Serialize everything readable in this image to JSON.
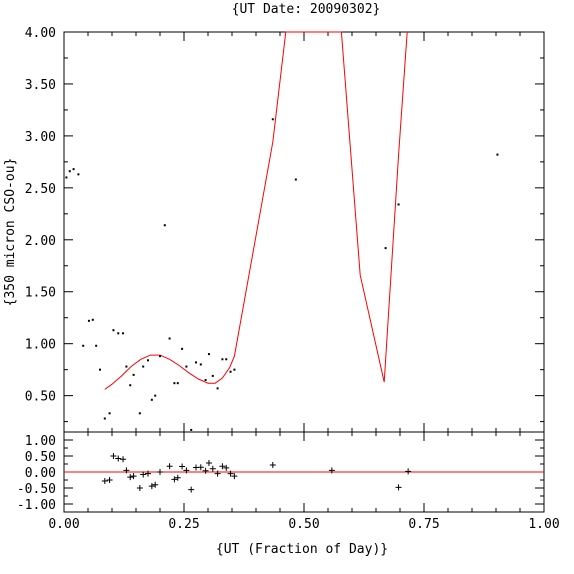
{
  "chart_data": {
    "type": "scatter",
    "title": "{UT Date: 20090302}",
    "xlabel": "{UT (Fraction of Day)}",
    "ylabel": "{350 micron CSO-ou}",
    "xlim": [
      0.0,
      1.0
    ],
    "ylim": [
      0.15,
      4.0
    ],
    "residual_ylim": [
      -1.25,
      1.25
    ],
    "x_ticks": [
      "0.00",
      "0.25",
      "0.50",
      "0.75",
      "1.00"
    ],
    "y_ticks": [
      "0.50",
      "1.00",
      "1.50",
      "2.00",
      "2.50",
      "3.00",
      "3.50",
      "4.00"
    ],
    "residual_y_ticks": [
      "1.00",
      "0.50",
      "0.00",
      "-0.50",
      "-1.00"
    ],
    "colors": {
      "fit": "#ff0000",
      "points": "#000000",
      "axes": "#000000"
    },
    "points": [
      {
        "x": 0.005,
        "y": 2.6
      },
      {
        "x": 0.012,
        "y": 2.66
      },
      {
        "x": 0.02,
        "y": 2.68
      },
      {
        "x": 0.03,
        "y": 2.63
      },
      {
        "x": 0.04,
        "y": 0.98
      },
      {
        "x": 0.052,
        "y": 1.22
      },
      {
        "x": 0.06,
        "y": 1.23
      },
      {
        "x": 0.067,
        "y": 0.98
      },
      {
        "x": 0.075,
        "y": 0.75
      },
      {
        "x": 0.085,
        "y": 0.28
      },
      {
        "x": 0.095,
        "y": 0.33
      },
      {
        "x": 0.103,
        "y": 1.13
      },
      {
        "x": 0.113,
        "y": 1.1
      },
      {
        "x": 0.123,
        "y": 1.1
      },
      {
        "x": 0.13,
        "y": 0.78
      },
      {
        "x": 0.138,
        "y": 0.6
      },
      {
        "x": 0.145,
        "y": 0.7
      },
      {
        "x": 0.158,
        "y": 0.33
      },
      {
        "x": 0.165,
        "y": 0.78
      },
      {
        "x": 0.175,
        "y": 0.84
      },
      {
        "x": 0.183,
        "y": 0.46
      },
      {
        "x": 0.19,
        "y": 0.5
      },
      {
        "x": 0.2,
        "y": 0.88
      },
      {
        "x": 0.21,
        "y": 2.14
      },
      {
        "x": 0.22,
        "y": 1.05
      },
      {
        "x": 0.23,
        "y": 0.62
      },
      {
        "x": 0.237,
        "y": 0.62
      },
      {
        "x": 0.246,
        "y": 0.95
      },
      {
        "x": 0.255,
        "y": 0.78
      },
      {
        "x": 0.265,
        "y": 0.17
      },
      {
        "x": 0.275,
        "y": 0.82
      },
      {
        "x": 0.285,
        "y": 0.8
      },
      {
        "x": 0.295,
        "y": 0.65
      },
      {
        "x": 0.302,
        "y": 0.9
      },
      {
        "x": 0.31,
        "y": 0.69
      },
      {
        "x": 0.32,
        "y": 0.57
      },
      {
        "x": 0.33,
        "y": 0.85
      },
      {
        "x": 0.338,
        "y": 0.85
      },
      {
        "x": 0.347,
        "y": 0.73
      },
      {
        "x": 0.355,
        "y": 0.75
      },
      {
        "x": 0.435,
        "y": 3.16
      },
      {
        "x": 0.483,
        "y": 2.58
      },
      {
        "x": 0.67,
        "y": 1.92
      },
      {
        "x": 0.697,
        "y": 2.34
      },
      {
        "x": 0.903,
        "y": 2.82
      }
    ],
    "fit_curve": [
      {
        "x": 0.085,
        "y": 0.56
      },
      {
        "x": 0.1,
        "y": 0.61
      },
      {
        "x": 0.12,
        "y": 0.69
      },
      {
        "x": 0.14,
        "y": 0.78
      },
      {
        "x": 0.16,
        "y": 0.85
      },
      {
        "x": 0.18,
        "y": 0.89
      },
      {
        "x": 0.2,
        "y": 0.89
      },
      {
        "x": 0.22,
        "y": 0.85
      },
      {
        "x": 0.24,
        "y": 0.79
      },
      {
        "x": 0.26,
        "y": 0.72
      },
      {
        "x": 0.28,
        "y": 0.66
      },
      {
        "x": 0.3,
        "y": 0.62
      },
      {
        "x": 0.315,
        "y": 0.62
      },
      {
        "x": 0.33,
        "y": 0.67
      },
      {
        "x": 0.345,
        "y": 0.77
      },
      {
        "x": 0.355,
        "y": 0.88
      },
      {
        "x": 0.435,
        "y": 2.94
      },
      {
        "x": 0.462,
        "y": 4.0
      },
      {
        "x": 0.578,
        "y": 4.0
      },
      {
        "x": 0.617,
        "y": 1.66
      },
      {
        "x": 0.667,
        "y": 0.63
      },
      {
        "x": 0.697,
        "y": 2.82
      },
      {
        "x": 0.715,
        "y": 4.0
      }
    ],
    "residuals": [
      {
        "x": 0.085,
        "y": -0.28
      },
      {
        "x": 0.095,
        "y": -0.25
      },
      {
        "x": 0.103,
        "y": 0.5
      },
      {
        "x": 0.113,
        "y": 0.42
      },
      {
        "x": 0.123,
        "y": 0.4
      },
      {
        "x": 0.13,
        "y": 0.05
      },
      {
        "x": 0.138,
        "y": -0.16
      },
      {
        "x": 0.145,
        "y": -0.13
      },
      {
        "x": 0.158,
        "y": -0.5
      },
      {
        "x": 0.165,
        "y": -0.08
      },
      {
        "x": 0.175,
        "y": -0.05
      },
      {
        "x": 0.183,
        "y": -0.44
      },
      {
        "x": 0.19,
        "y": -0.4
      },
      {
        "x": 0.2,
        "y": 0.0
      },
      {
        "x": 0.22,
        "y": 0.18
      },
      {
        "x": 0.23,
        "y": -0.23
      },
      {
        "x": 0.237,
        "y": -0.18
      },
      {
        "x": 0.246,
        "y": 0.17
      },
      {
        "x": 0.255,
        "y": 0.05
      },
      {
        "x": 0.265,
        "y": -0.55
      },
      {
        "x": 0.275,
        "y": 0.14
      },
      {
        "x": 0.285,
        "y": 0.15
      },
      {
        "x": 0.295,
        "y": 0.04
      },
      {
        "x": 0.302,
        "y": 0.28
      },
      {
        "x": 0.31,
        "y": 0.1
      },
      {
        "x": 0.32,
        "y": -0.05
      },
      {
        "x": 0.33,
        "y": 0.18
      },
      {
        "x": 0.338,
        "y": 0.13
      },
      {
        "x": 0.347,
        "y": -0.05
      },
      {
        "x": 0.355,
        "y": -0.13
      },
      {
        "x": 0.435,
        "y": 0.22
      },
      {
        "x": 0.558,
        "y": 0.05
      },
      {
        "x": 0.697,
        "y": -0.48
      },
      {
        "x": 0.717,
        "y": 0.02
      }
    ]
  }
}
